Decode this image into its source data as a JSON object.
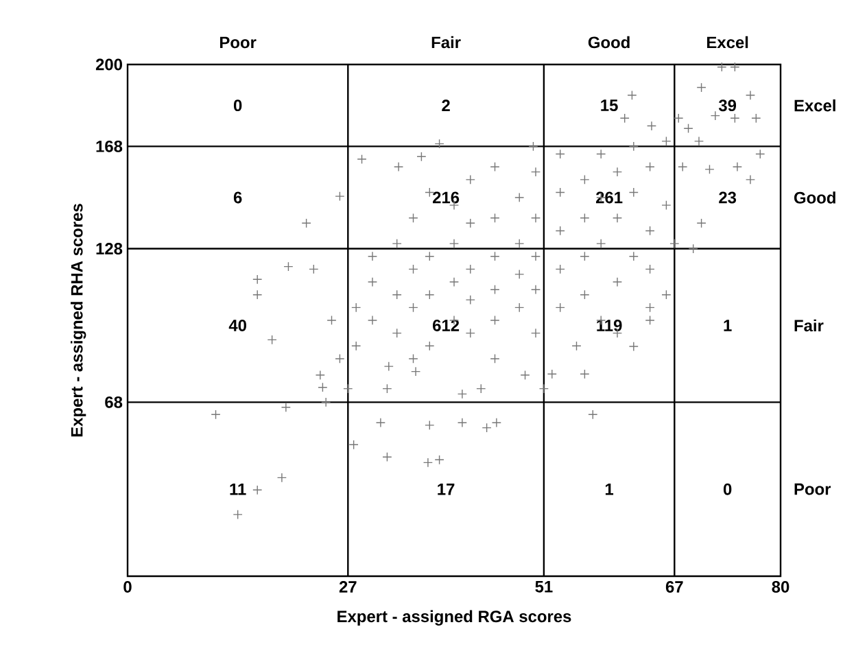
{
  "chart_data": {
    "type": "scatter",
    "xlabel": "Expert - assigned RGA scores",
    "ylabel": "Expert - assigned RHA scores",
    "xlim": [
      0,
      80
    ],
    "ylim": [
      0,
      200
    ],
    "xticks": [
      0,
      27,
      51,
      67,
      80
    ],
    "yticks": [
      68,
      128,
      168,
      200
    ],
    "marker": "cross",
    "series": [
      {
        "color": "#777777",
        "x": [
          72.8,
          74.4,
          76.3,
          77,
          74.4,
          70.3,
          61.8,
          60.9,
          64.2,
          67.5,
          68.7,
          77.5,
          74.7,
          76.3,
          71.3,
          70.3,
          69.3,
          17.7,
          15.9,
          15.9,
          19.7,
          22.8,
          26,
          21.9,
          28.7,
          33.2,
          36,
          38.2,
          49.7,
          10.8,
          18.9,
          15.9,
          13.5,
          27.7,
          31.8,
          36.8,
          38.2,
          57,
          41,
          44,
          45.2,
          31,
          37,
          19.4,
          24.3,
          23.6,
          23.9,
          27,
          31.8,
          35.3,
          48.7,
          52,
          56,
          62,
          64,
          51,
          41,
          43.3,
          30,
          30,
          30,
          33,
          33,
          33,
          35,
          35,
          35,
          37,
          37,
          37,
          37,
          40,
          40,
          40,
          40,
          42,
          42,
          42,
          42,
          42,
          45,
          45,
          45,
          45,
          45,
          48,
          48,
          48,
          48,
          50,
          50,
          50,
          50,
          50,
          53,
          53,
          53,
          53,
          53,
          56,
          56,
          56,
          56,
          58,
          58,
          58,
          58,
          60,
          60,
          60,
          62,
          62,
          62,
          64,
          64,
          66,
          66,
          68,
          70,
          72,
          26,
          28,
          28,
          25,
          32,
          35,
          45,
          55,
          60,
          64,
          64,
          66,
          67
        ],
        "values": [
          199,
          199,
          188,
          179,
          179,
          191,
          188,
          179,
          176,
          179,
          175,
          165,
          160,
          155,
          159,
          138,
          128,
          92.4,
          116,
          110,
          121,
          120,
          148.5,
          138,
          163,
          160,
          164,
          169,
          168,
          63.2,
          38.5,
          33.7,
          24.1,
          51.4,
          46.6,
          44.4,
          45.5,
          63.2,
          60,
          58,
          60,
          60,
          59,
          66,
          68,
          78.6,
          73.8,
          73.3,
          73.3,
          80,
          78.6,
          79,
          79,
          89.8,
          100,
          73.3,
          71.2,
          73.3,
          100,
          115,
          125,
          95,
          110,
          130,
          105,
          120,
          140,
          90,
          110,
          125,
          150,
          100,
          115,
          130,
          145,
          95,
          108,
          120,
          138,
          155,
          100,
          112,
          125,
          140,
          160,
          105,
          118,
          130,
          148,
          95,
          112,
          125,
          140,
          158,
          105,
          120,
          135,
          150,
          165,
          110,
          125,
          140,
          155,
          100,
          130,
          148,
          165,
          115,
          140,
          158,
          125,
          150,
          168,
          135,
          160,
          145,
          170,
          160,
          170,
          180,
          85,
          90,
          105,
          100,
          82,
          85,
          85,
          90,
          95,
          105,
          120,
          110,
          130
        ]
      }
    ],
    "ref_lines": [
      {
        "axis": "x",
        "value": 27,
        "color": "#000000",
        "line_style": "solid"
      },
      {
        "axis": "x",
        "value": 51,
        "color": "#000000",
        "line_style": "solid"
      },
      {
        "axis": "x",
        "value": 67,
        "color": "#000000",
        "line_style": "solid"
      },
      {
        "axis": "y",
        "value": 68,
        "color": "#000000",
        "line_style": "solid"
      },
      {
        "axis": "y",
        "value": 128,
        "color": "#000000",
        "line_style": "solid"
      },
      {
        "axis": "y",
        "value": 168,
        "color": "#000000",
        "line_style": "solid"
      }
    ],
    "annotations": [
      "Poor",
      "Fair",
      "Good",
      "Excel",
      "Excel",
      "Good",
      "Fair",
      "Poor",
      "0",
      "2",
      "15",
      "39",
      "6",
      "216",
      "261",
      "23",
      "40",
      "612",
      "119",
      "1",
      "11",
      "17",
      "1",
      "0"
    ]
  }
}
